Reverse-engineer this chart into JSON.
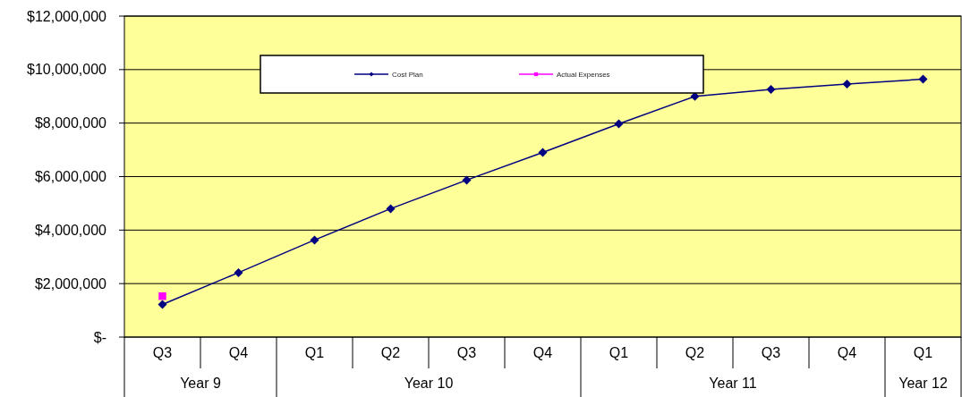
{
  "chart_data": {
    "type": "line",
    "categories": [
      "Q3",
      "Q4",
      "Q1",
      "Q2",
      "Q3",
      "Q4",
      "Q1",
      "Q2",
      "Q3",
      "Q4",
      "Q1"
    ],
    "series": [
      {
        "name": "Cost Plan",
        "color": "#000080",
        "marker": "diamond",
        "values": [
          1220000,
          2410000,
          3630000,
          4800000,
          5870000,
          6900000,
          7970000,
          9000000,
          9260000,
          9460000,
          9640000
        ]
      },
      {
        "name": "Actual Expenses",
        "color": "#ff00ff",
        "marker": "square",
        "values": [
          1530000,
          null,
          null,
          null,
          null,
          null,
          null,
          null,
          null,
          null,
          null
        ]
      }
    ],
    "ylim": [
      0,
      12000000
    ],
    "yticks": [
      {
        "value": 0,
        "label": "$-"
      },
      {
        "value": 2000000,
        "label": "$2,000,000"
      },
      {
        "value": 4000000,
        "label": "$4,000,000"
      },
      {
        "value": 6000000,
        "label": "$6,000,000"
      },
      {
        "value": 8000000,
        "label": "$8,000,000"
      },
      {
        "value": 10000000,
        "label": "$10,000,000"
      },
      {
        "value": 12000000,
        "label": "$12,000,000"
      }
    ],
    "annotations": [
      "Year 9",
      "Year 10",
      "Year 11",
      "Year 12"
    ],
    "grid": "y",
    "legend": "top",
    "line_style": "solid"
  }
}
